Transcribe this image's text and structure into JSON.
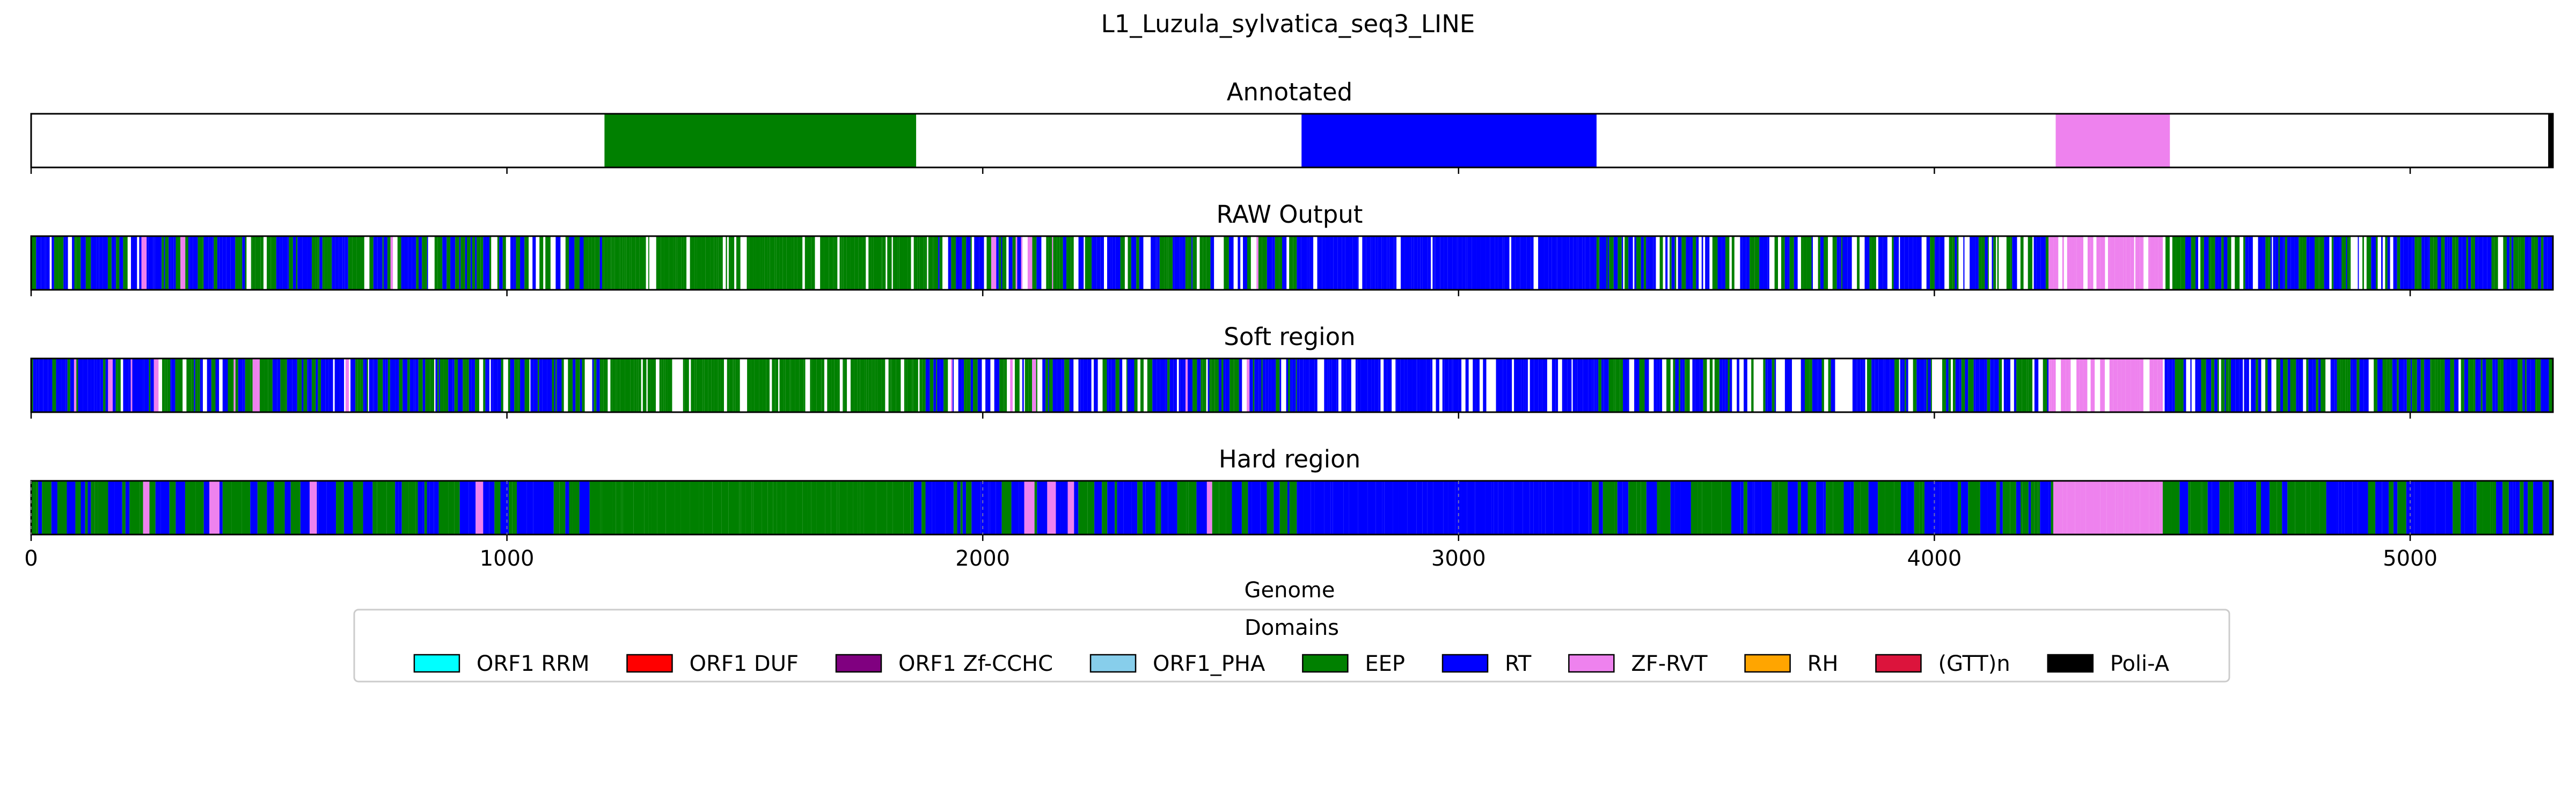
{
  "chart_data": {
    "type": "bar",
    "title": "L1_Luzula_sylvatica_seq3_LINE",
    "xlabel": "Genome",
    "xlim": [
      0,
      5300
    ],
    "xticks": [
      0,
      1000,
      2000,
      3000,
      4000,
      5000
    ],
    "xtick_labels": [
      "0",
      "1000",
      "2000",
      "3000",
      "4000",
      "5000"
    ],
    "legend": {
      "title": "Domains",
      "placement": "bottom-center",
      "entries": [
        {
          "label": "ORF1 RRM",
          "color": "#00ffff"
        },
        {
          "label": "ORF1 DUF",
          "color": "#ff0000"
        },
        {
          "label": "ORF1 Zf-CCHC",
          "color": "#800080"
        },
        {
          "label": "ORF1_PHA",
          "color": "#87ceeb"
        },
        {
          "label": "EEP",
          "color": "#008000"
        },
        {
          "label": "RT",
          "color": "#0000ff"
        },
        {
          "label": "ZF-RVT",
          "color": "#ee82ee"
        },
        {
          "label": "RH",
          "color": "#ffa500"
        },
        {
          "label": "(GTT)n",
          "color": "#dc143c"
        },
        {
          "label": "Poli-A",
          "color": "#000000"
        }
      ]
    },
    "tracks": [
      {
        "title": "Annotated",
        "pattern": "annotated",
        "segments": [
          {
            "domain": "EEP",
            "start": 1205,
            "end": 1860
          },
          {
            "domain": "RT",
            "start": 2670,
            "end": 3290
          },
          {
            "domain": "ZF-RVT",
            "start": 4255,
            "end": 4495
          },
          {
            "domain": "Poli-A",
            "start": 5290,
            "end": 5300
          }
        ]
      },
      {
        "title": "RAW Output",
        "pattern": "raw",
        "regions": [
          {
            "start": 0,
            "end": 950,
            "mix": {
              "RT": 0.5,
              "EEP": 0.35,
              "ZF-RVT": 0.05,
              "none": 0.1
            }
          },
          {
            "start": 950,
            "end": 1200,
            "mix": {
              "RT": 0.45,
              "EEP": 0.4,
              "none": 0.15
            }
          },
          {
            "start": 1200,
            "end": 1880,
            "mix": {
              "EEP": 0.78,
              "none": 0.22
            }
          },
          {
            "start": 1880,
            "end": 2660,
            "mix": {
              "RT": 0.45,
              "EEP": 0.35,
              "ZF-RVT": 0.05,
              "none": 0.15
            }
          },
          {
            "start": 2660,
            "end": 3290,
            "mix": {
              "RT": 0.85,
              "none": 0.15
            }
          },
          {
            "start": 3290,
            "end": 4240,
            "mix": {
              "RT": 0.45,
              "EEP": 0.35,
              "none": 0.2
            }
          },
          {
            "start": 4240,
            "end": 4480,
            "mix": {
              "ZF-RVT": 0.8,
              "none": 0.2
            }
          },
          {
            "start": 4480,
            "end": 5300,
            "mix": {
              "RT": 0.5,
              "EEP": 0.4,
              "none": 0.1
            }
          }
        ]
      },
      {
        "title": "Soft region",
        "pattern": "soft",
        "regions": [
          {
            "start": 0,
            "end": 950,
            "mix": {
              "RT": 0.5,
              "EEP": 0.35,
              "ZF-RVT": 0.05,
              "none": 0.1
            }
          },
          {
            "start": 950,
            "end": 1200,
            "mix": {
              "RT": 0.45,
              "EEP": 0.4,
              "none": 0.15
            }
          },
          {
            "start": 1200,
            "end": 1880,
            "mix": {
              "EEP": 0.8,
              "none": 0.2
            }
          },
          {
            "start": 1880,
            "end": 2660,
            "mix": {
              "RT": 0.45,
              "EEP": 0.35,
              "ZF-RVT": 0.05,
              "none": 0.15
            }
          },
          {
            "start": 2660,
            "end": 3290,
            "mix": {
              "RT": 0.85,
              "none": 0.15
            }
          },
          {
            "start": 3290,
            "end": 4240,
            "mix": {
              "RT": 0.45,
              "EEP": 0.35,
              "none": 0.2
            }
          },
          {
            "start": 4240,
            "end": 4480,
            "mix": {
              "ZF-RVT": 0.8,
              "none": 0.2
            }
          },
          {
            "start": 4480,
            "end": 5300,
            "mix": {
              "RT": 0.5,
              "EEP": 0.4,
              "none": 0.1
            }
          }
        ]
      },
      {
        "title": "Hard region",
        "pattern": "hard",
        "regions": [
          {
            "start": 0,
            "end": 950,
            "mix": {
              "RT": 0.5,
              "EEP": 0.42,
              "ZF-RVT": 0.08
            }
          },
          {
            "start": 950,
            "end": 1200,
            "mix": {
              "RT": 0.5,
              "EEP": 0.5
            }
          },
          {
            "start": 1200,
            "end": 1855,
            "mix": {
              "EEP": 1.0
            }
          },
          {
            "start": 1855,
            "end": 2660,
            "mix": {
              "RT": 0.5,
              "EEP": 0.42,
              "ZF-RVT": 0.08
            }
          },
          {
            "start": 2660,
            "end": 3280,
            "mix": {
              "RT": 1.0
            }
          },
          {
            "start": 3280,
            "end": 4250,
            "mix": {
              "RT": 0.55,
              "EEP": 0.45
            }
          },
          {
            "start": 4250,
            "end": 4480,
            "mix": {
              "ZF-RVT": 1.0
            }
          },
          {
            "start": 4480,
            "end": 5300,
            "mix": {
              "RT": 0.55,
              "EEP": 0.45
            }
          }
        ]
      }
    ]
  }
}
